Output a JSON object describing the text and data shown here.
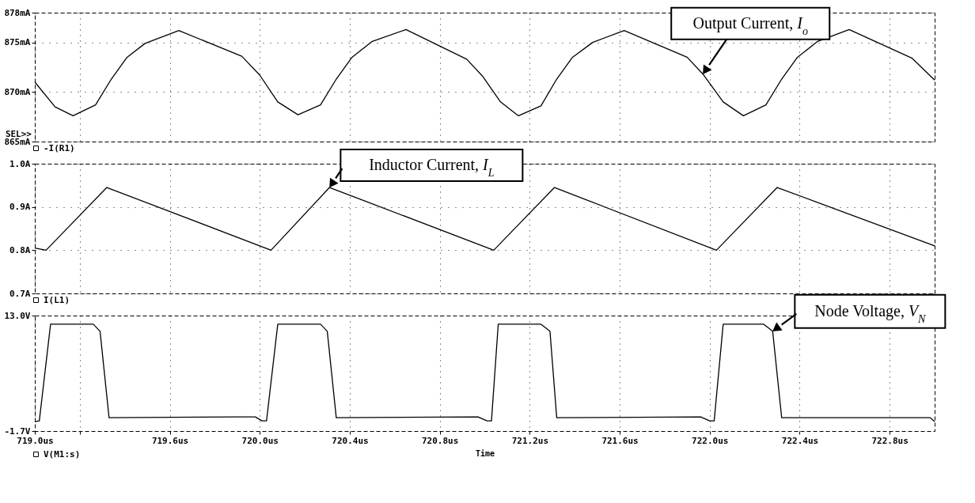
{
  "chart_data": [
    {
      "type": "line",
      "xlim": [
        719.0,
        723.0
      ],
      "xticks": [
        719.0,
        719.2,
        719.6,
        720.0,
        720.4,
        720.8,
        721.2,
        721.6,
        722.0,
        722.4,
        722.8
      ],
      "ylim": [
        865,
        878
      ],
      "yticks": [
        {
          "value": 865,
          "label": "865mA"
        },
        {
          "value": 870,
          "label": "870mA"
        },
        {
          "value": 875,
          "label": "875mA"
        },
        {
          "value": 878,
          "label": "878mA"
        }
      ],
      "tick_labels": "y",
      "grid": true,
      "legend": "bottom left",
      "series": [
        {
          "name": "-I(R1)",
          "color": "#000000",
          "x": [
            719.0,
            719.09,
            719.17,
            719.27,
            719.34,
            719.41,
            719.49,
            719.64,
            719.92,
            720.0,
            720.08,
            720.17,
            720.27,
            720.34,
            720.41,
            720.5,
            720.65,
            720.92,
            720.99,
            721.07,
            721.15,
            721.25,
            721.32,
            721.39,
            721.48,
            721.62,
            721.9,
            721.97,
            722.06,
            722.15,
            722.25,
            722.32,
            722.39,
            722.48,
            722.62,
            722.9,
            723.0
          ],
          "values": [
            871.0,
            868.5,
            867.6,
            868.7,
            871.3,
            873.5,
            874.9,
            876.2,
            873.6,
            871.7,
            869.0,
            867.7,
            868.7,
            871.3,
            873.5,
            875.1,
            876.3,
            873.3,
            871.6,
            869.0,
            867.6,
            868.6,
            871.3,
            873.5,
            875.0,
            876.2,
            873.5,
            871.8,
            869.0,
            867.6,
            868.7,
            871.3,
            873.5,
            875.1,
            876.3,
            873.4,
            871.2
          ]
        }
      ],
      "annotations": [
        "SEL>>",
        {
          "text": "Output Current, I$_{o}$",
          "x": 721.97,
          "y": 871.8
        }
      ]
    },
    {
      "type": "line",
      "xlim": [
        719.0,
        723.0
      ],
      "xticks": [
        719.0,
        719.2,
        719.6,
        720.0,
        720.4,
        720.8,
        721.2,
        721.6,
        722.0,
        722.4,
        722.8
      ],
      "ylim": [
        0.7,
        1.0
      ],
      "yticks": [
        {
          "value": 0.7,
          "label": "0.7A"
        },
        {
          "value": 0.8,
          "label": "0.8A"
        },
        {
          "value": 0.9,
          "label": "0.9A"
        },
        {
          "value": 1.0,
          "label": "1.0A"
        }
      ],
      "tick_labels": "y",
      "grid": true,
      "legend": "bottom left",
      "series": [
        {
          "name": "I(L1)",
          "color": "#000000",
          "x": [
            719.0,
            719.05,
            719.32,
            720.05,
            720.31,
            721.04,
            721.31,
            722.03,
            722.3,
            723.0
          ],
          "values": [
            0.805,
            0.8,
            0.945,
            0.8,
            0.945,
            0.8,
            0.945,
            0.8,
            0.945,
            0.81
          ]
        }
      ],
      "annotations": [
        {
          "text": "Inductor Current, I$_{L}$",
          "x": 720.31,
          "y": 0.945
        }
      ]
    },
    {
      "type": "line",
      "xlim": [
        719.0,
        723.0
      ],
      "xticks": [
        {
          "value": 719.0,
          "label": "719.0us"
        },
        {
          "value": 719.2,
          "label": null
        },
        {
          "value": 719.6,
          "label": "719.6us"
        },
        {
          "value": 720.0,
          "label": "720.0us"
        },
        {
          "value": 720.4,
          "label": "720.4us"
        },
        {
          "value": 720.8,
          "label": "720.8us"
        },
        {
          "value": 721.2,
          "label": "721.2us"
        },
        {
          "value": 721.6,
          "label": "721.6us"
        },
        {
          "value": 722.0,
          "label": "722.0us"
        },
        {
          "value": 722.4,
          "label": "722.4us"
        },
        {
          "value": 722.8,
          "label": "722.8us"
        }
      ],
      "ylim": [
        -1.7,
        13.0
      ],
      "yticks": [
        {
          "value": -1.7,
          "label": "-1.7V"
        },
        {
          "value": 13.0,
          "label": "13.0V"
        }
      ],
      "xlabel": "Time",
      "grid": "x",
      "legend": "bottom left",
      "series": [
        {
          "name": "V(M1:s)",
          "color": "#000000",
          "x": [
            719.0,
            719.02,
            719.07,
            719.26,
            719.29,
            719.33,
            719.9,
            719.98,
            720.01,
            720.03,
            720.08,
            720.27,
            720.3,
            720.34,
            720.97,
            721.01,
            721.03,
            721.06,
            721.25,
            721.29,
            721.32,
            721.96,
            722.0,
            722.02,
            722.06,
            722.24,
            722.28,
            722.32,
            722.98,
            723.0
          ],
          "values": [
            -0.5,
            -0.4,
            11.9,
            11.9,
            11.0,
            0.0,
            0.1,
            0.1,
            -0.4,
            -0.4,
            11.9,
            11.9,
            11.0,
            0.0,
            0.1,
            -0.4,
            -0.4,
            11.9,
            11.9,
            11.0,
            0.0,
            0.1,
            -0.4,
            -0.4,
            11.9,
            11.9,
            11.0,
            0.0,
            0.0,
            -0.5
          ]
        }
      ],
      "annotations": [
        {
          "text": "Node Voltage, V$_{N}$",
          "x": 722.28,
          "y": 11.0
        }
      ]
    }
  ]
}
